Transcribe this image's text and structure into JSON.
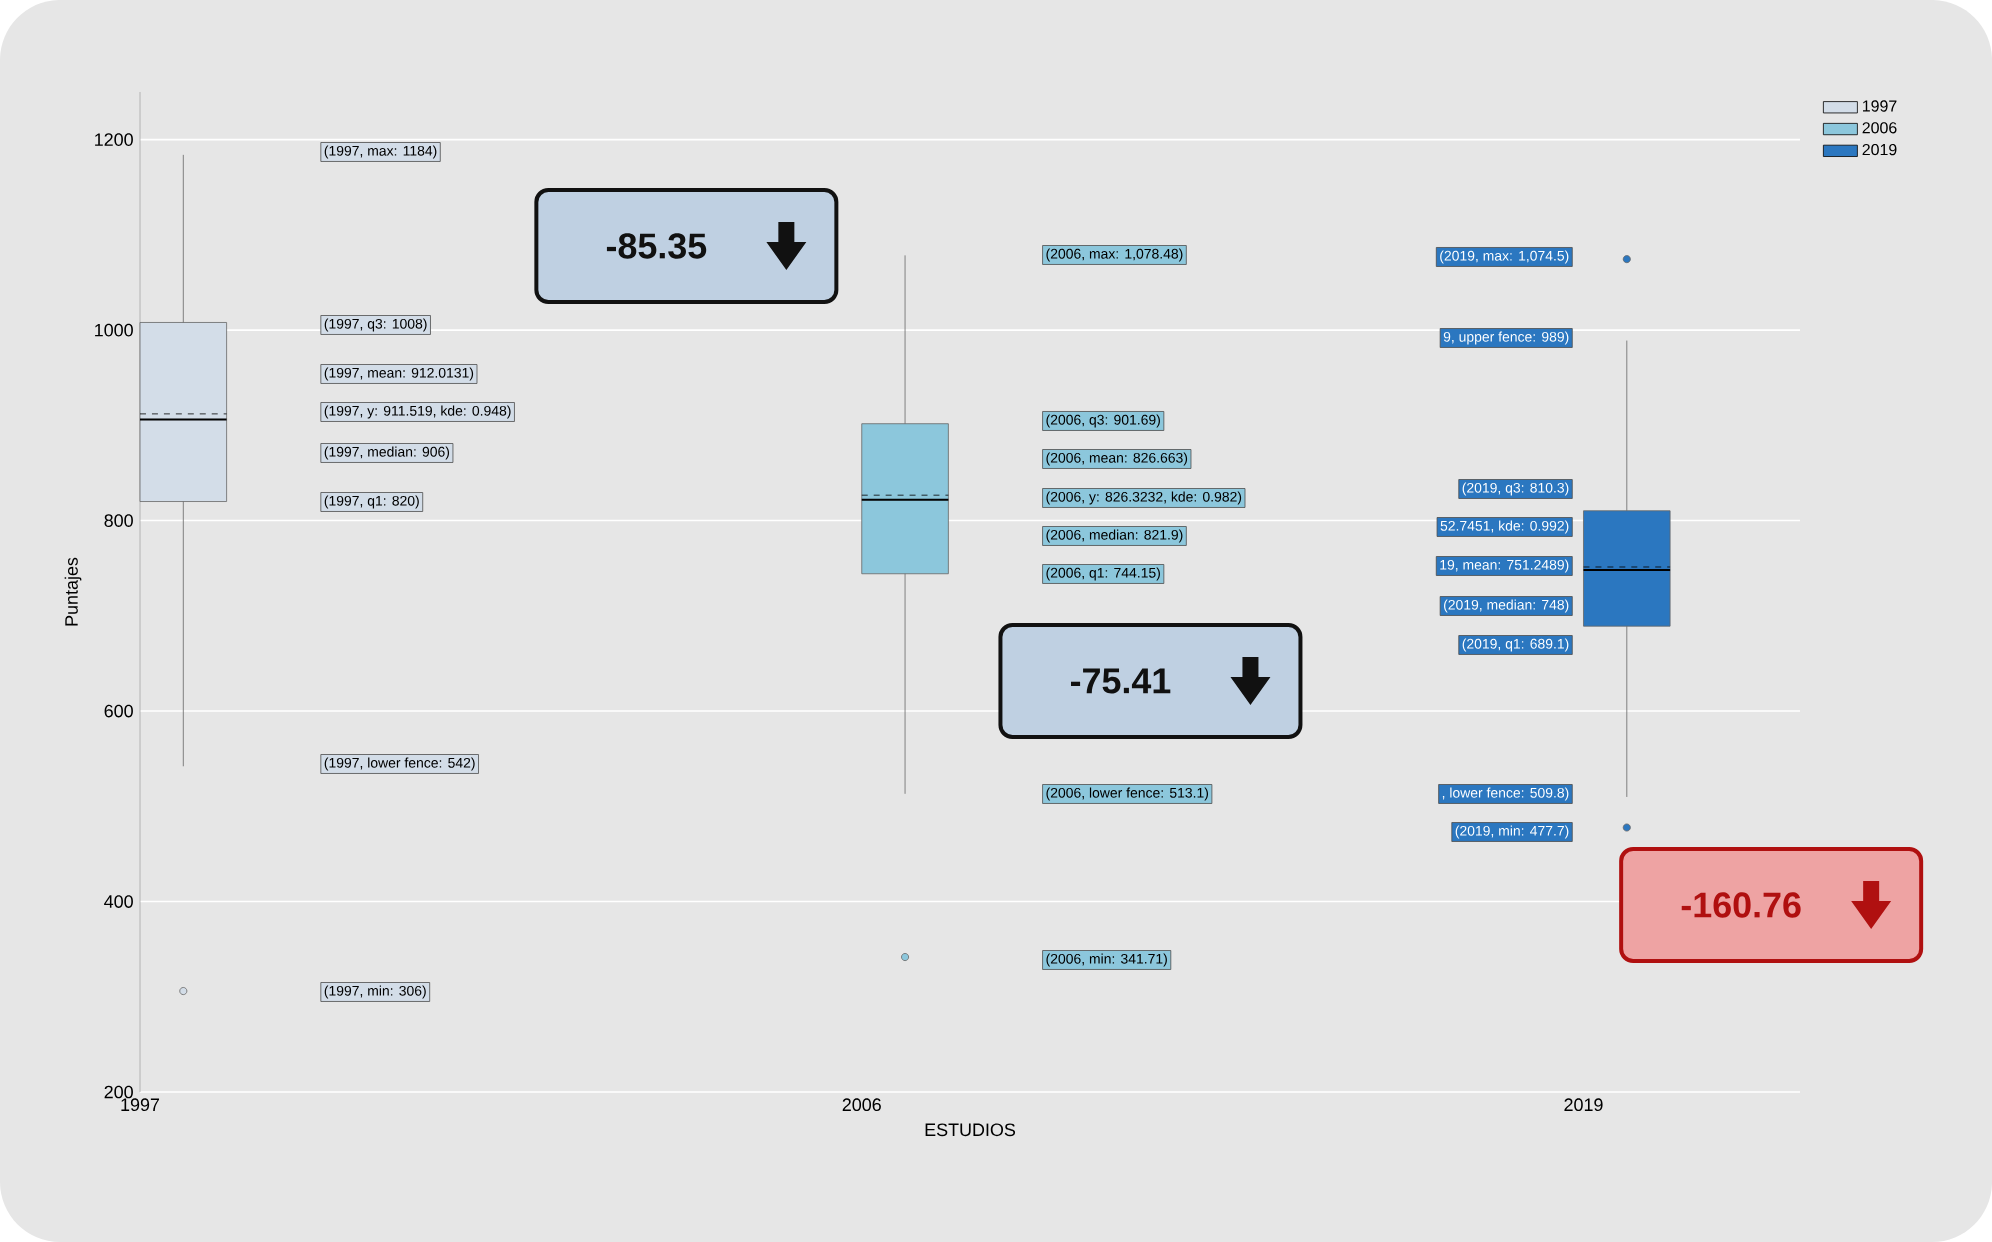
{
  "chart_data": {
    "type": "box",
    "xlabel": "ESTUDIOS",
    "ylabel": "Puntajes",
    "categories": [
      "1997",
      "2006",
      "2019"
    ],
    "ylim": [
      200,
      1250
    ],
    "yticks": [
      200,
      400,
      600,
      800,
      1000,
      1200
    ],
    "grid": "y",
    "legend": "top right",
    "series": [
      {
        "name": "1997",
        "color": "#d3dde8",
        "boxes": [
          {
            "low": 542,
            "q1": 820,
            "median": 906,
            "q3": 1008,
            "high": 1184,
            "mean": 912.0131,
            "outliers": [
              306
            ]
          },
          null,
          null
        ]
      },
      {
        "name": "2006",
        "color": "#8cc7dc",
        "boxes": [
          null,
          {
            "low": 513.1,
            "q1": 744.15,
            "median": 821.9,
            "q3": 901.69,
            "high": 1078.48,
            "mean": 826.663,
            "outliers": [
              341.71
            ]
          },
          null
        ]
      },
      {
        "name": "2019",
        "color": "#2b77c0",
        "boxes": [
          null,
          null,
          {
            "low": 509.8,
            "q1": 689.1,
            "median": 748,
            "q3": 810.3,
            "high": 989,
            "mean": 751.2489,
            "outliers": [
              1074.5,
              477.7
            ]
          }
        ]
      }
    ],
    "annotations": [
      "(1997, max: 1184)",
      "(1997, q3: 1008)",
      "(1997, mean: 912.0131)",
      "(1997, y: 911.519, kde: 0.948)",
      "(1997, median: 906)",
      "(1997, q1: 820)",
      "(1997, lower fence: 542)",
      "(1997, min: 306)",
      "(2006, max: 1,078.48)",
      "(2006, q3: 901.69)",
      "(2006, mean: 826.663)",
      "(2006, y: 826.3232, kde: 0.982)",
      "(2006, median: 821.9)",
      "(2006, q1: 744.15)",
      "(2006, lower fence: 513.1)",
      "(2006, min: 341.71)",
      "(2019, max: 1,074.5)",
      "9, upper fence: 989)",
      "(2019, q3: 810.3)",
      "52.7451, kde: 0.992)",
      "19, mean: 751.2489)",
      "(2019, median: 748)",
      "(2019, q1: 689.1)",
      ", lower fence: 509.8)",
      "(2019, min: 477.7)",
      "-85.35",
      "-75.41",
      "-160.76"
    ]
  }
}
